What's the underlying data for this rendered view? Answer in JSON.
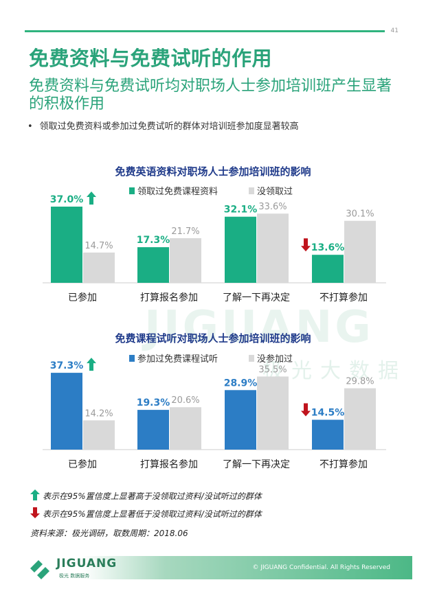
{
  "page": {
    "page_number": "41",
    "title": "免费资料与免费试听的作用",
    "subtitle": "免费资料与免费试听均对职场人士参加培训班产生显著的积极作用",
    "bullet": "领取过免费资料或参加过免费试听的群体对培训班参加度显著较高",
    "watermark": "JIGUANG",
    "watermark_cn": "极光大数据",
    "footnote_up": "表示在95%置信度上显著高于没领取过资料/没试听过的群体",
    "footnote_down": "表示在95%置信度上显著低于没领取过资料/没试听过的群体",
    "source": "资料来源：极光调研，取数周期：2018.06",
    "logo_text": "JIGUANG",
    "logo_sub": "极光 数据服务",
    "copyright": "© JIGUANG Confidential. All Rights Reserved"
  },
  "colors": {
    "accent_green": "#2aa37a",
    "bar_green": "#1aae84",
    "bar_blue": "#2c7dc5",
    "bar_gray": "#d9d9d9",
    "arrow_up": "#1aae84",
    "arrow_down": "#c0141d"
  },
  "chart_data": [
    {
      "type": "bar",
      "title": "免费英语资料对职场人士参加培训班的影响",
      "categories": [
        "已参加",
        "打算报名参加",
        "了解一下再决定",
        "不打算参加"
      ],
      "series": [
        {
          "name": "领取过免费课程资料",
          "values": [
            37.0,
            17.3,
            32.1,
            13.6
          ],
          "labels": [
            "37.0%",
            "17.3%",
            "32.1%",
            "13.6%"
          ],
          "color": "#1aae84"
        },
        {
          "name": "没领取过",
          "values": [
            14.7,
            21.7,
            33.6,
            30.1
          ],
          "labels": [
            "14.7%",
            "21.7%",
            "33.6%",
            "30.1%"
          ],
          "color": "#d9d9d9"
        }
      ],
      "significance": [
        "up",
        "none",
        "none",
        "down"
      ],
      "ylim": [
        0,
        40
      ],
      "legend_position": "top"
    },
    {
      "type": "bar",
      "title": "免费课程试听对职场人士参加培训班的影响",
      "categories": [
        "已参加",
        "打算报名参加",
        "了解一下再决定",
        "不打算参加"
      ],
      "series": [
        {
          "name": "参加过免费课程试听",
          "values": [
            37.3,
            19.3,
            28.9,
            14.5
          ],
          "labels": [
            "37.3%",
            "19.3%",
            "28.9%",
            "14.5%"
          ],
          "color": "#2c7dc5"
        },
        {
          "name": "没参加过",
          "values": [
            14.2,
            20.6,
            35.5,
            29.8
          ],
          "labels": [
            "14.2%",
            "20.6%",
            "35.5%",
            "29.8%"
          ],
          "color": "#d9d9d9"
        }
      ],
      "significance": [
        "up",
        "none",
        "none",
        "down"
      ],
      "ylim": [
        0,
        40
      ],
      "legend_position": "top"
    }
  ]
}
